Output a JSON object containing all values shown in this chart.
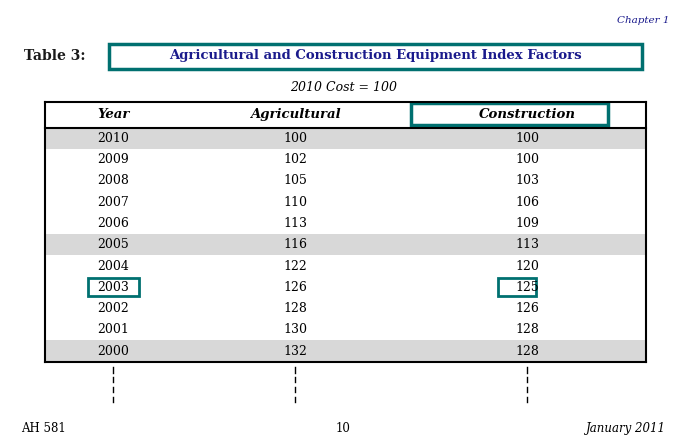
{
  "title_prefix": "Table 3:",
  "title_main": "Agricultural and Construction Equipment Index Factors",
  "subtitle": "2010 Cost = 100",
  "chapter_label": "Chapter 1",
  "footer_left": "AH 581",
  "footer_center": "10",
  "footer_right": "January 2011",
  "col_headers": [
    "Year",
    "Agricultural",
    "Construction"
  ],
  "rows": [
    [
      2010,
      100,
      100
    ],
    [
      2009,
      102,
      100
    ],
    [
      2008,
      105,
      103
    ],
    [
      2007,
      110,
      106
    ],
    [
      2006,
      113,
      109
    ],
    [
      2005,
      116,
      113
    ],
    [
      2004,
      122,
      120
    ],
    [
      2003,
      126,
      125
    ],
    [
      2002,
      128,
      126
    ],
    [
      2001,
      130,
      128
    ],
    [
      2000,
      132,
      128
    ]
  ],
  "highlight_row": 7,
  "highlight_color": "#007070",
  "stripe_rows": [
    0,
    5,
    10
  ],
  "stripe_color": "#d8d8d8",
  "title_box_color": "#007070",
  "fig_width": 6.87,
  "fig_height": 4.48,
  "dpi": 100
}
